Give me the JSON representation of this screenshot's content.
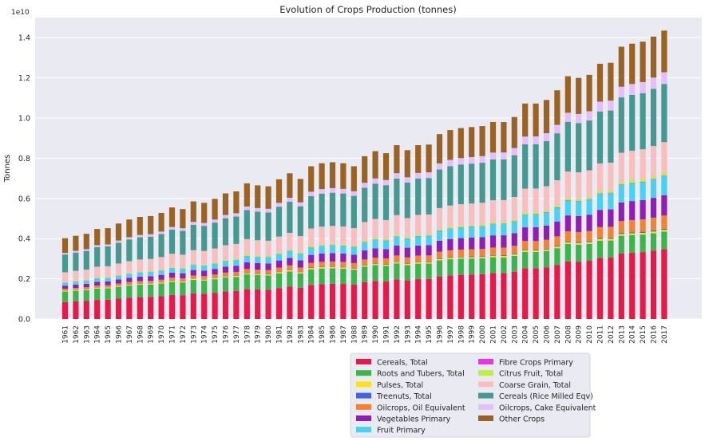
{
  "chart_data": {
    "type": "bar",
    "stacked": true,
    "title": "Evolution of Crops Production (tonnes)",
    "xlabel": "",
    "ylabel": "Tonnes",
    "y_multiplier_label": "1e10",
    "ylim": [
      0,
      15000000000
    ],
    "yticks": [
      0,
      2000000000,
      4000000000,
      6000000000,
      8000000000,
      10000000000,
      12000000000,
      14000000000
    ],
    "ytick_labels": [
      "0.0",
      "0.2",
      "0.4",
      "0.6",
      "0.8",
      "1.0",
      "1.2",
      "1.4"
    ],
    "grid": true,
    "legend_position": "bottom",
    "categories": [
      "1961",
      "1962",
      "1963",
      "1964",
      "1965",
      "1966",
      "1967",
      "1968",
      "1969",
      "1970",
      "1971",
      "1972",
      "1973",
      "1974",
      "1975",
      "1976",
      "1977",
      "1978",
      "1979",
      "1980",
      "1981",
      "1982",
      "1983",
      "1984",
      "1985",
      "1986",
      "1987",
      "1988",
      "1989",
      "1990",
      "1991",
      "1992",
      "1993",
      "1994",
      "1995",
      "1996",
      "1997",
      "1998",
      "1999",
      "2000",
      "2001",
      "2002",
      "2003",
      "2004",
      "2005",
      "2006",
      "2007",
      "2008",
      "2009",
      "2010",
      "2011",
      "2012",
      "2013",
      "2014",
      "2015",
      "2016",
      "2017"
    ],
    "totals": [
      4020000000.0,
      4140000000.0,
      4240000000.0,
      4480000000.0,
      4520000000.0,
      4750000000.0,
      4950000000.0,
      5080000000.0,
      5120000000.0,
      5280000000.0,
      5550000000.0,
      5470000000.0,
      5850000000.0,
      5780000000.0,
      5980000000.0,
      6250000000.0,
      6350000000.0,
      6750000000.0,
      6650000000.0,
      6600000000.0,
      6950000000.0,
      7250000000.0,
      6970000000.0,
      7600000000.0,
      7750000000.0,
      7800000000.0,
      7750000000.0,
      7600000000.0,
      8100000000.0,
      8350000000.0,
      8250000000.0,
      8650000000.0,
      8400000000.0,
      8650000000.0,
      8680000000.0,
      9200000000.0,
      9400000000.0,
      9500000000.0,
      9550000000.0,
      9600000000.0,
      9800000000.0,
      9800000000.0,
      10050000000.0,
      10720000000.0,
      10720000000.0,
      10900000000.0,
      11380000000.0,
      12080000000.0,
      12000000000.0,
      12150000000.0,
      12700000000.0,
      12750000000.0,
      13550000000.0,
      13700000000.0,
      13800000000.0,
      14050000000.0,
      14350000000.0
    ],
    "series": [
      {
        "name": "Cereals, Total",
        "color": "#e6194b",
        "share": [
          0.21,
          0.24
        ]
      },
      {
        "name": "Roots and Tubers, Total",
        "color": "#3cb44b",
        "share": [
          0.13,
          0.06
        ]
      },
      {
        "name": "Pulses, Total",
        "color": "#ffe119",
        "share": [
          0.01,
          0.006
        ]
      },
      {
        "name": "Treenuts, Total",
        "color": "#4363d8",
        "share": [
          0.003,
          0.004
        ]
      },
      {
        "name": "Oilcrops, Oil Equivalent",
        "color": "#f58231",
        "share": [
          0.02,
          0.045
        ]
      },
      {
        "name": "Vegetables Primary",
        "color": "#911eb4",
        "share": [
          0.04,
          0.07
        ]
      },
      {
        "name": "Fruit Primary",
        "color": "#46d2f0",
        "share": [
          0.035,
          0.065
        ]
      },
      {
        "name": "Fibre Crops Primary",
        "color": "#f032e6",
        "share": [
          0.002,
          0.002
        ]
      },
      {
        "name": "Citrus Fruit, Total",
        "color": "#bfef45",
        "share": [
          0.008,
          0.01
        ]
      },
      {
        "name": "Coarse Grain, Total",
        "color": "#fabebe",
        "share": [
          0.12,
          0.105
        ]
      },
      {
        "name": "Cereals (Rice Milled Eqv)",
        "color": "#469990",
        "share": [
          0.22,
          0.2
        ]
      },
      {
        "name": "Oilcrops, Cake Equivalent",
        "color": "#e6beff",
        "share": [
          0.02,
          0.04
        ]
      },
      {
        "name": "Other Crops",
        "color": "#9a6324",
        "share": [
          0.182,
          0.143
        ]
      }
    ]
  }
}
